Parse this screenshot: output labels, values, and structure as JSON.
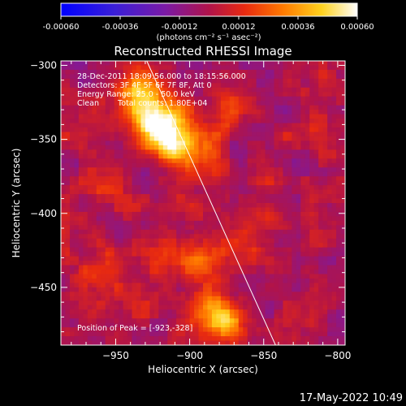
{
  "title": "Reconstructed RHESSI Image",
  "footer_timestamp": "17-May-2022 10:49",
  "colorbar": {
    "tick_labels": [
      "-0.00060",
      "-0.00036",
      "-0.00012",
      "0.00012",
      "0.00036",
      "0.00060"
    ],
    "units_label": "(photons cm⁻² s⁻¹ asec⁻²)",
    "range": [
      -0.0006,
      0.0006
    ]
  },
  "info": {
    "line1": "28-Dec-2011 18:09:56.000 to 18:15:56.000",
    "line2": "Detectors: 3F 4F 5F 6F 7F 8F, Att 0",
    "line3": "Energy Range: 25.0 - 50.0 keV",
    "line4_method": "Clean",
    "line4_counts": "Total counts: 1.80E+04",
    "peak": "Position of Peak = [-923,-328]"
  },
  "colors": {
    "background": "#000000",
    "text": "#ffffff",
    "limb_line": "#ffffff"
  },
  "chart_data": {
    "type": "heatmap",
    "title": "Reconstructed RHESSI Image",
    "xlabel": "Heliocentric X (arcsec)",
    "ylabel": "Heliocentric Y (arcsec)",
    "xlim": [
      -987,
      -795
    ],
    "ylim": [
      -489,
      -297
    ],
    "xticks": [
      -950,
      -900,
      -850,
      -800
    ],
    "yticks": [
      -300,
      -350,
      -400,
      -450
    ],
    "xtick_labels": [
      "−950",
      "−900",
      "−850",
      "−800"
    ],
    "ytick_labels": [
      "−300",
      "−350",
      "−400",
      "−450"
    ],
    "colormap": "rainbow-hot",
    "value_range": [
      -0.0006,
      0.0006
    ],
    "peak_position": [
      -923,
      -328
    ],
    "limb_line": [
      [
        -929,
        -297
      ],
      [
        -842,
        -489
      ]
    ],
    "bright_sources": [
      {
        "x": -920,
        "y": -340,
        "value": 0.00058
      },
      {
        "x": -905,
        "y": -355,
        "value": 0.0004
      },
      {
        "x": -935,
        "y": -320,
        "value": 0.00032
      },
      {
        "x": -880,
        "y": -470,
        "value": 0.00045
      },
      {
        "x": -895,
        "y": -430,
        "value": 0.00025
      },
      {
        "x": -960,
        "y": -440,
        "value": 0.00018
      },
      {
        "x": -875,
        "y": -330,
        "value": 0.00022
      },
      {
        "x": -860,
        "y": -410,
        "value": 0.00015
      }
    ]
  }
}
